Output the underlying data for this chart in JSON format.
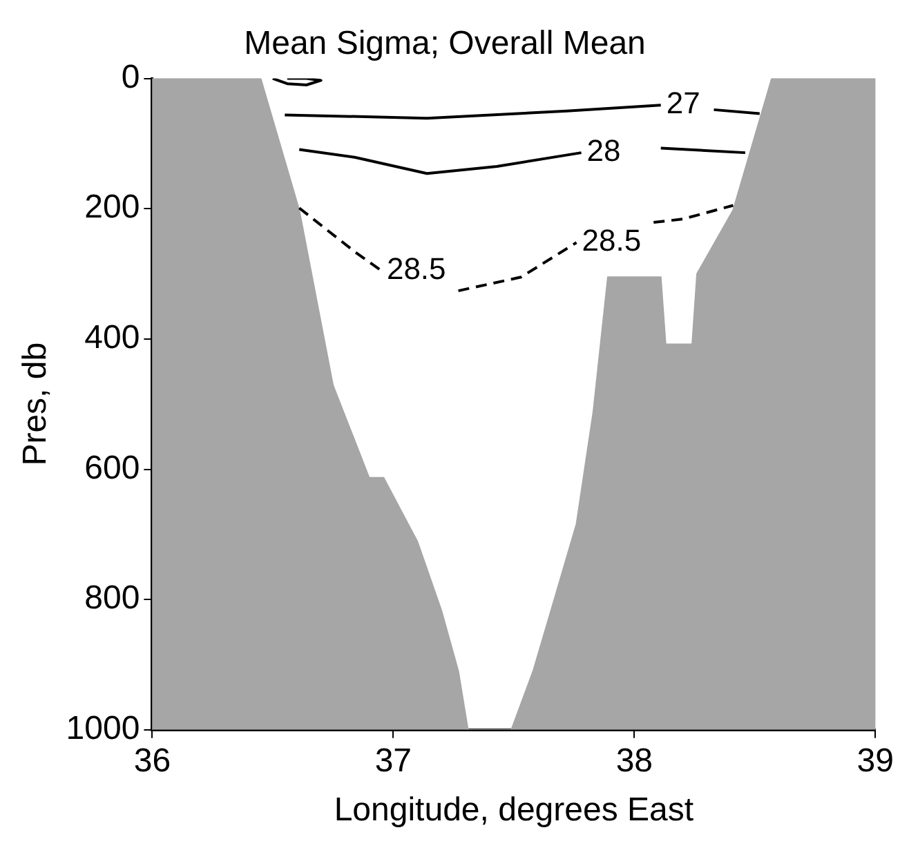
{
  "chart_data": {
    "type": "line",
    "title": "Mean Sigma; Overall Mean",
    "xlabel": "Longitude, degrees East",
    "ylabel": "Pres, db",
    "xlim": [
      36,
      39
    ],
    "xticks": [
      36,
      37,
      38,
      39
    ],
    "ylim": [
      1000,
      0
    ],
    "yticks": [
      0,
      200,
      400,
      600,
      800,
      1000
    ],
    "grid": false,
    "legend": false,
    "series": [
      {
        "type": "area",
        "color": "#a6a6a6",
        "x": [
          36,
          36,
          36.45,
          36.61,
          36.75,
          36.9,
          36.96,
          37.1,
          37.2,
          37.27,
          37.31,
          37.49,
          37.58,
          37.66,
          37.76,
          37.83,
          37.89,
          38.11,
          38.13,
          38.24,
          38.26,
          38.41,
          38.57,
          39,
          39
        ],
        "values": [
          1000,
          0,
          0,
          202,
          471,
          613,
          613,
          711,
          817,
          910,
          1000,
          1000,
          910,
          810,
          684,
          511,
          305,
          305,
          408,
          408,
          300,
          202,
          0,
          0,
          1000
        ]
      },
      {
        "type": "line",
        "color": "#000000",
        "line_style": "solid",
        "x": [
          36.5,
          36.56,
          36.64,
          36.7,
          36.64,
          36.56
        ],
        "values": [
          0,
          8,
          10,
          3,
          0,
          0
        ]
      },
      {
        "type": "line",
        "color": "#000000",
        "line_style": "solid",
        "x": [
          36.55,
          37.14,
          37.72,
          38.11,
          38.23,
          38.33,
          38.52
        ],
        "values": [
          56,
          61,
          50,
          41,
          null,
          48,
          54
        ]
      },
      {
        "type": "line",
        "color": "#000000",
        "line_style": "solid",
        "x": [
          36.61,
          36.84,
          37.14,
          37.43,
          37.78,
          37.9,
          38.11,
          38.46
        ],
        "values": [
          109,
          121,
          146,
          135,
          114,
          null,
          107,
          114
        ]
      },
      {
        "type": "line",
        "color": "#000000",
        "line_style": "dashed",
        "x": [
          36.61,
          36.84,
          36.95,
          37.1,
          37.27,
          37.53,
          37.76,
          37.93,
          38.08,
          38.2,
          38.41
        ],
        "values": [
          199,
          266,
          295,
          null,
          326,
          305,
          252,
          null,
          221,
          216,
          195
        ]
      }
    ],
    "annotations": [
      {
        "text": "27",
        "x": 38.11,
        "y": 41
      },
      {
        "text": "28",
        "x": 37.78,
        "y": 114
      },
      {
        "text": "28.5",
        "x": 36.95,
        "y": 295
      },
      {
        "text": "28.5",
        "x": 37.76,
        "y": 252
      }
    ]
  }
}
